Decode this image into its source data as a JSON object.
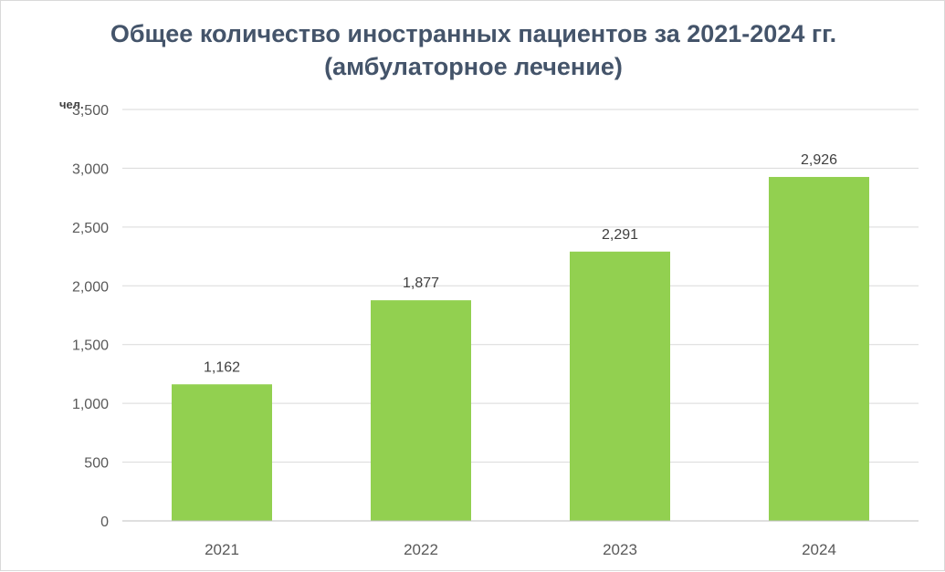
{
  "chart_data": {
    "type": "bar",
    "title_line1": "Общее количество иностранных пациентов за 2021-2024 гг.",
    "title_line2": "(амбулаторное лечение)",
    "ylabel": "чел.",
    "xlabel": "",
    "categories": [
      "2021",
      "2022",
      "2023",
      "2024"
    ],
    "values": [
      1162,
      1877,
      2291,
      2926
    ],
    "data_labels": [
      "1,162",
      "1,877",
      "2,291",
      "2,926"
    ],
    "ylim": [
      0,
      3500
    ],
    "yticks": [
      0,
      500,
      1000,
      1500,
      2000,
      2500,
      3000,
      3500
    ],
    "ytick_labels": [
      "0",
      "500",
      "1,000",
      "1,500",
      "2,000",
      "2,500",
      "3,000",
      "3,500"
    ],
    "grid": true,
    "legend": "none",
    "bar_color": "#92d050",
    "grid_color": "#d9d9d9"
  }
}
